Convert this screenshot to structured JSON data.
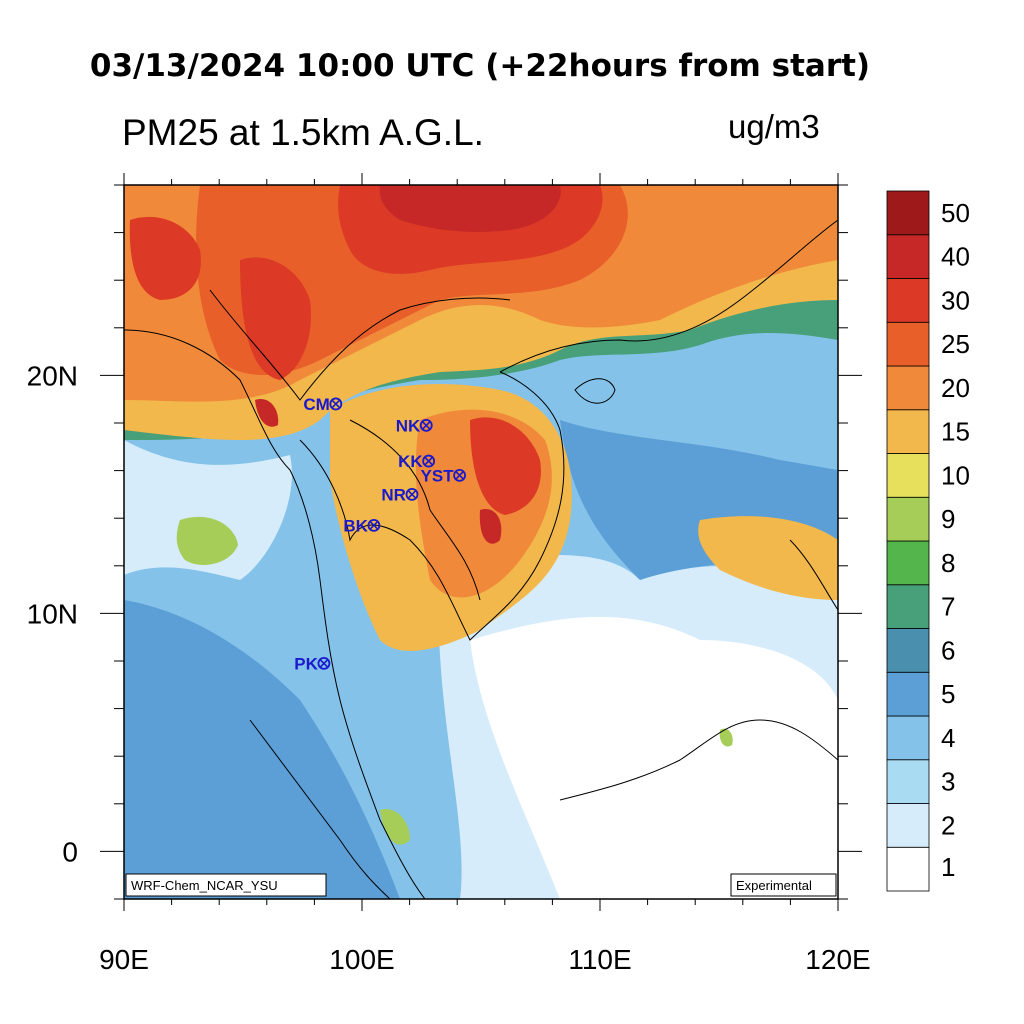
{
  "title": "03/13/2024 10:00 UTC (+22hours from start)",
  "variable_title": "PM25 at 1.5km A.G.L.",
  "units": "ug/m3",
  "left_note": "WRF-Chem_NCAR_YSU",
  "right_note": "Experimental",
  "axes": {
    "lon_range": [
      90,
      120
    ],
    "lat_range": [
      -2,
      28
    ],
    "x_ticks": [
      "90E",
      "100E",
      "110E",
      "120E"
    ],
    "x_tick_values": [
      90,
      100,
      110,
      120
    ],
    "y_ticks": [
      "0",
      "10N",
      "20N"
    ],
    "y_tick_values": [
      0,
      10,
      20
    ]
  },
  "colorbar": {
    "labels": [
      "1",
      "2",
      "3",
      "4",
      "5",
      "6",
      "7",
      "8",
      "9",
      "10",
      "15",
      "20",
      "25",
      "30",
      "40",
      "50"
    ],
    "colors": [
      "#ffffff",
      "#d6ecfa",
      "#a9dcf3",
      "#84c2ea",
      "#5b9fd6",
      "#4a90ae",
      "#48a07a",
      "#53b54b",
      "#a5cd57",
      "#e6e05d",
      "#f2b84b",
      "#f08a3a",
      "#e95f2a",
      "#dc3a26",
      "#c62828",
      "#9e1a1a"
    ]
  },
  "sites": [
    {
      "code": "CM",
      "lon": 98.9,
      "lat": 18.8
    },
    {
      "code": "NK",
      "lon": 102.7,
      "lat": 17.9
    },
    {
      "code": "KK",
      "lon": 102.8,
      "lat": 16.4
    },
    {
      "code": "YST",
      "lon": 104.1,
      "lat": 15.8
    },
    {
      "code": "NR",
      "lon": 102.1,
      "lat": 15.0
    },
    {
      "code": "BK",
      "lon": 100.5,
      "lat": 13.7
    },
    {
      "code": "PK",
      "lon": 98.4,
      "lat": 7.9
    }
  ]
}
